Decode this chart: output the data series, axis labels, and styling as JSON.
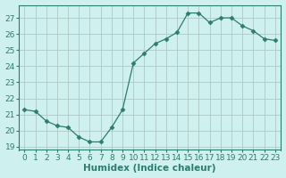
{
  "x": [
    0,
    1,
    2,
    3,
    4,
    5,
    6,
    7,
    8,
    9,
    10,
    11,
    12,
    13,
    14,
    15,
    16,
    17,
    18,
    19,
    20,
    21,
    22,
    23
  ],
  "y": [
    21.3,
    21.2,
    20.6,
    20.3,
    20.2,
    19.6,
    19.3,
    19.3,
    20.2,
    21.3,
    24.2,
    24.8,
    25.4,
    25.7,
    26.1,
    27.3,
    27.3,
    26.7,
    27.0,
    27.0,
    26.5,
    26.2,
    25.7,
    25.6
  ],
  "line_color": "#2d7d6f",
  "marker": "D",
  "marker_size": 2.5,
  "bg_color": "#cef0ee",
  "grid_color": "#b0c8c8",
  "xlabel": "Humidex (Indice chaleur)",
  "ylim": [
    18.8,
    27.8
  ],
  "xlim": [
    -0.5,
    23.5
  ],
  "yticks": [
    19,
    20,
    21,
    22,
    23,
    24,
    25,
    26,
    27
  ],
  "xticks": [
    0,
    1,
    2,
    3,
    4,
    5,
    6,
    7,
    8,
    9,
    10,
    11,
    12,
    13,
    14,
    15,
    16,
    17,
    18,
    19,
    20,
    21,
    22,
    23
  ],
  "tick_label_size": 6.5,
  "xlabel_size": 7.5,
  "xlabel_color": "#2d7d6f",
  "tick_color": "#2d7d6f"
}
